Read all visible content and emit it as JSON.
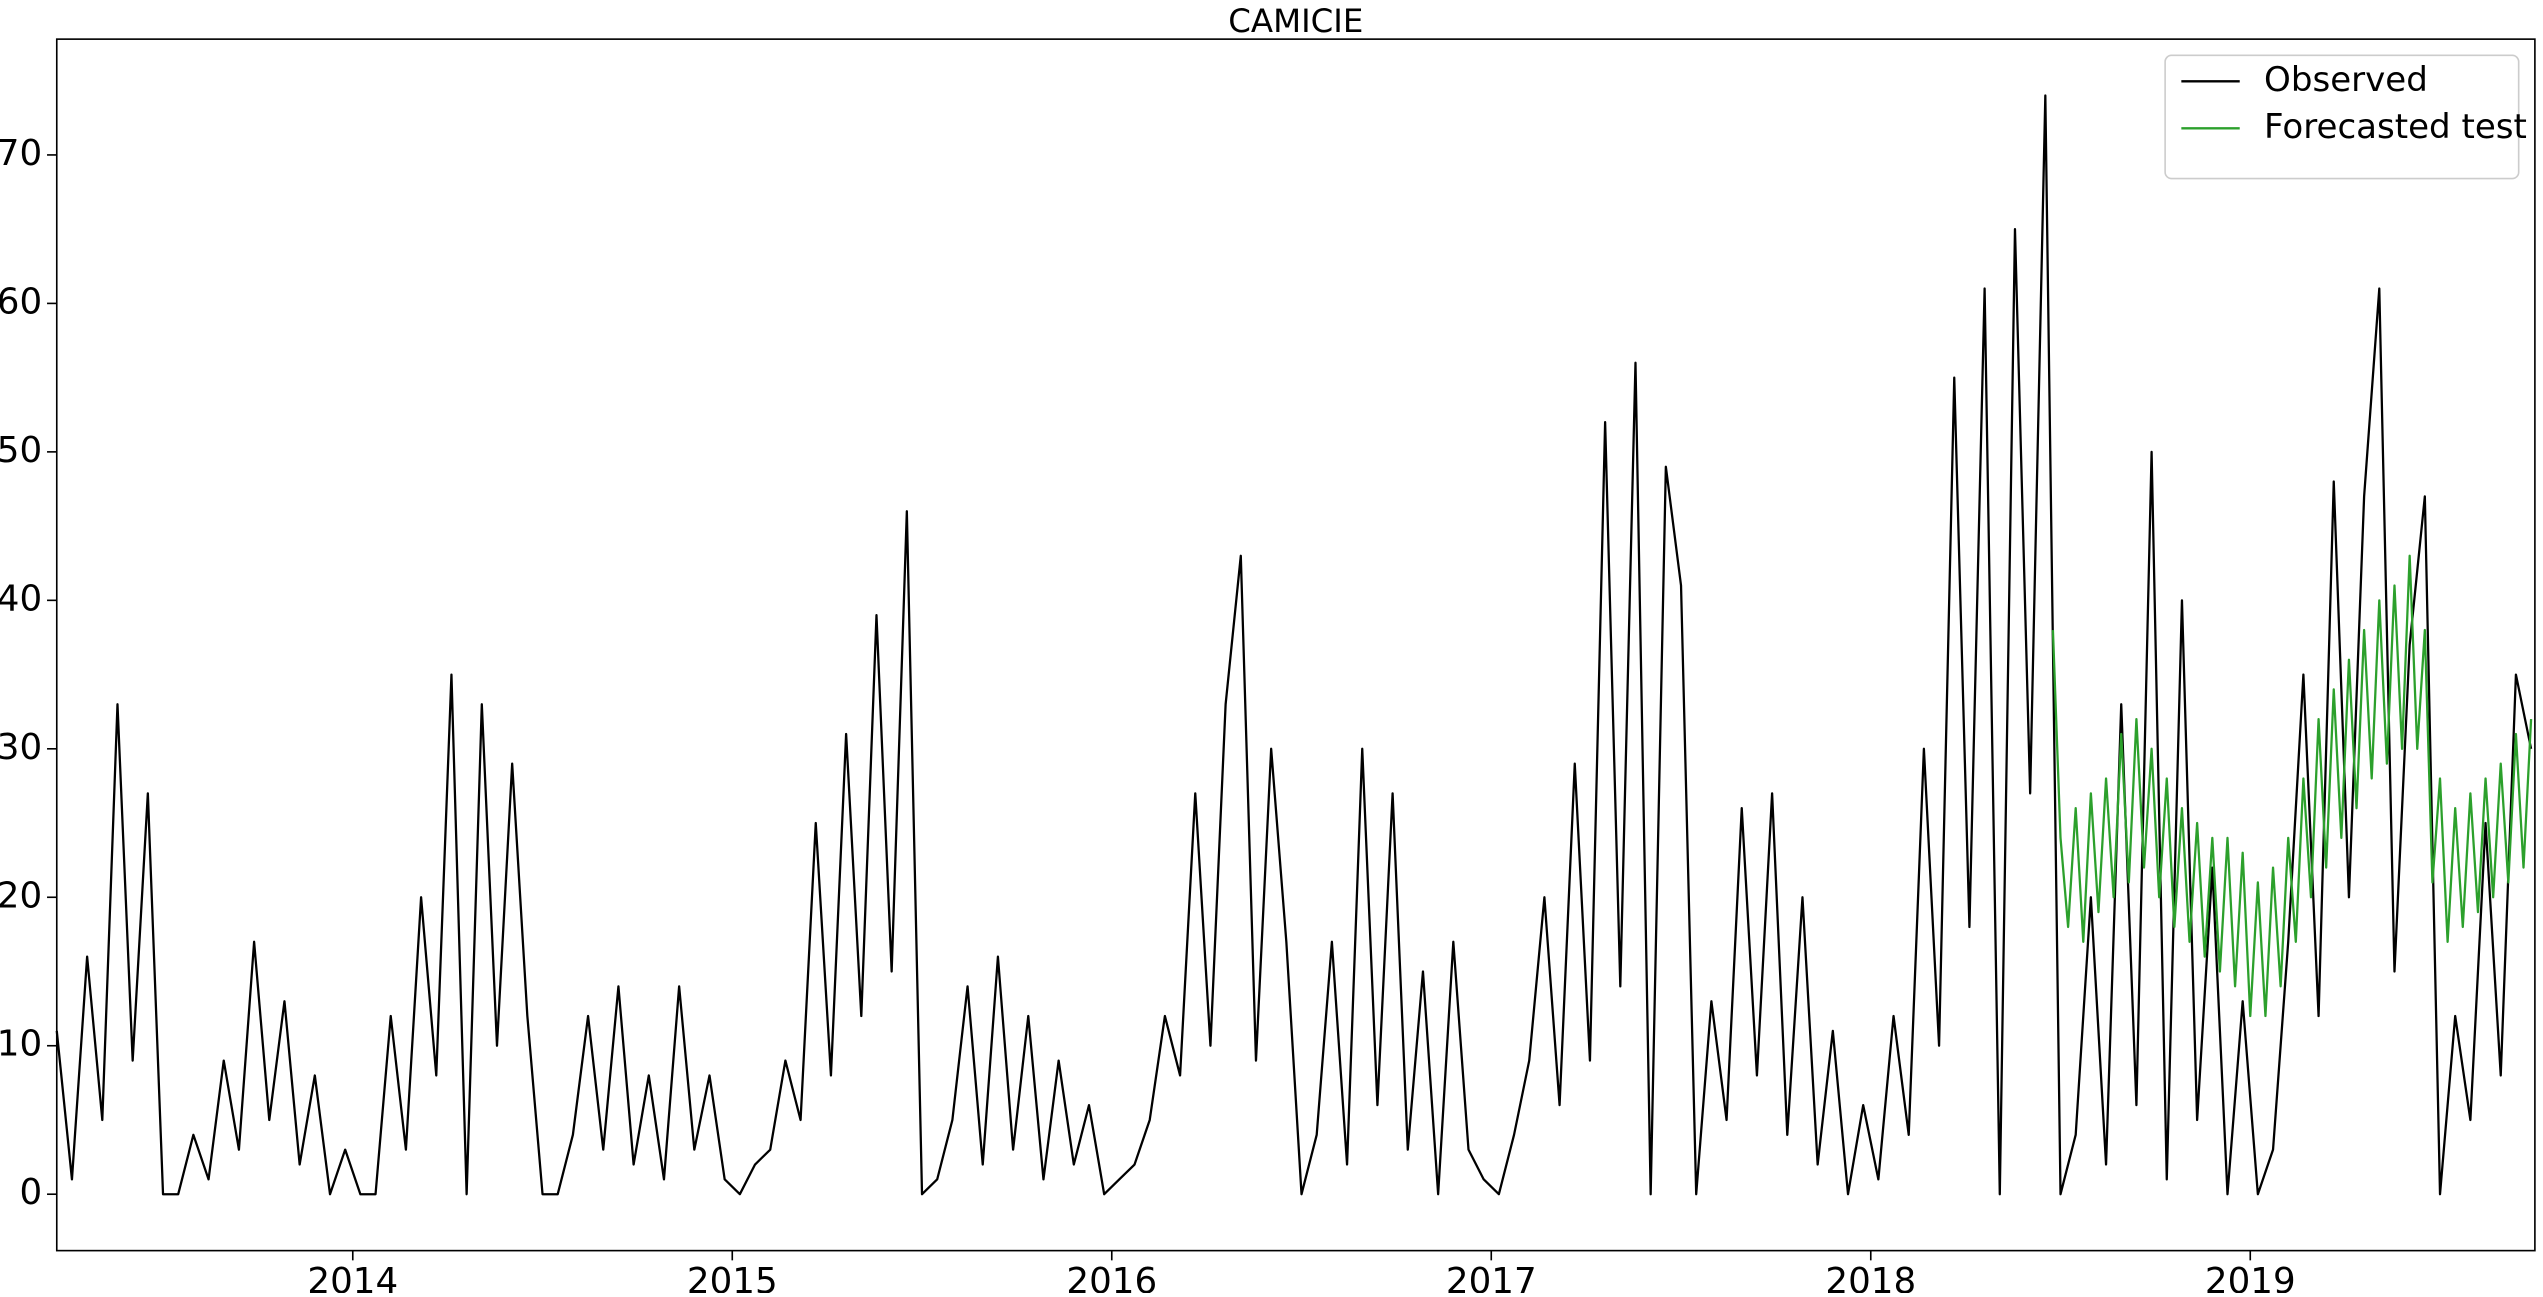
{
  "chart_data": {
    "type": "line",
    "title": "CAMICIE",
    "xlim": [
      2013.22,
      2019.75
    ],
    "xticks": [
      2014,
      2015,
      2016,
      2017,
      2018,
      2019
    ],
    "ylim": [
      -3.8,
      77.8
    ],
    "yticks": [
      0,
      10,
      20,
      30,
      40,
      50,
      60,
      70
    ],
    "grid": false,
    "legend": "upper-right",
    "series": [
      {
        "name": "Observed",
        "color": "#000000",
        "x": [
          2013.22,
          2013.26,
          2013.3,
          2013.34,
          2013.38,
          2013.42,
          2013.46,
          2013.5,
          2013.54,
          2013.58,
          2013.62,
          2013.66,
          2013.7,
          2013.74,
          2013.78,
          2013.82,
          2013.86,
          2013.9,
          2013.94,
          2013.98,
          2014.02,
          2014.06,
          2014.1,
          2014.14,
          2014.18,
          2014.22,
          2014.26,
          2014.3,
          2014.34,
          2014.38,
          2014.42,
          2014.46,
          2014.5,
          2014.54,
          2014.58,
          2014.62,
          2014.66,
          2014.7,
          2014.74,
          2014.78,
          2014.82,
          2014.86,
          2014.9,
          2014.94,
          2014.98,
          2015.02,
          2015.06,
          2015.1,
          2015.14,
          2015.18,
          2015.22,
          2015.26,
          2015.3,
          2015.34,
          2015.38,
          2015.42,
          2015.46,
          2015.5,
          2015.54,
          2015.58,
          2015.62,
          2015.66,
          2015.7,
          2015.74,
          2015.78,
          2015.82,
          2015.86,
          2015.9,
          2015.94,
          2015.98,
          2016.02,
          2016.06,
          2016.1,
          2016.14,
          2016.18,
          2016.22,
          2016.26,
          2016.3,
          2016.34,
          2016.38,
          2016.42,
          2016.46,
          2016.5,
          2016.54,
          2016.58,
          2016.62,
          2016.66,
          2016.7,
          2016.74,
          2016.78,
          2016.82,
          2016.86,
          2016.9,
          2016.94,
          2016.98,
          2017.02,
          2017.06,
          2017.1,
          2017.14,
          2017.18,
          2017.22,
          2017.26,
          2017.3,
          2017.34,
          2017.38,
          2017.42,
          2017.46,
          2017.5,
          2017.54,
          2017.58,
          2017.62,
          2017.66,
          2017.7,
          2017.74,
          2017.78,
          2017.82,
          2017.86,
          2017.9,
          2017.94,
          2017.98,
          2018.02,
          2018.06,
          2018.1,
          2018.14,
          2018.18,
          2018.22,
          2018.26,
          2018.3,
          2018.34,
          2018.38,
          2018.42,
          2018.46,
          2018.5,
          2018.54,
          2018.58,
          2018.62,
          2018.66,
          2018.7,
          2018.74,
          2018.78,
          2018.82,
          2018.86,
          2018.9,
          2018.94,
          2018.98,
          2019.02,
          2019.06,
          2019.1,
          2019.14,
          2019.18,
          2019.22,
          2019.26,
          2019.3,
          2019.34,
          2019.38,
          2019.42,
          2019.46,
          2019.5,
          2019.54,
          2019.58,
          2019.62,
          2019.66,
          2019.7,
          2019.74
        ],
        "values": [
          11,
          1,
          16,
          5,
          33,
          9,
          27,
          0,
          0,
          4,
          1,
          9,
          3,
          17,
          5,
          13,
          2,
          8,
          0,
          3,
          0,
          0,
          12,
          3,
          20,
          8,
          35,
          0,
          33,
          10,
          29,
          12,
          0,
          0,
          4,
          12,
          3,
          14,
          2,
          8,
          1,
          14,
          3,
          8,
          1,
          0,
          2,
          3,
          9,
          5,
          25,
          8,
          31,
          12,
          39,
          15,
          46,
          0,
          1,
          5,
          14,
          2,
          16,
          3,
          12,
          1,
          9,
          2,
          6,
          0,
          1,
          2,
          5,
          12,
          8,
          27,
          10,
          33,
          43,
          9,
          30,
          17,
          0,
          4,
          17,
          2,
          30,
          6,
          27,
          3,
          15,
          0,
          17,
          3,
          1,
          0,
          4,
          9,
          20,
          6,
          29,
          9,
          52,
          14,
          56,
          0,
          49,
          41,
          0,
          13,
          5,
          26,
          8,
          27,
          4,
          20,
          2,
          11,
          0,
          6,
          1,
          12,
          4,
          30,
          10,
          55,
          18,
          61,
          0,
          65,
          27,
          74,
          0,
          4,
          20,
          2,
          33,
          6,
          50,
          1,
          40,
          5,
          22,
          0,
          13,
          0,
          3,
          17,
          35,
          12,
          48,
          20,
          47,
          61,
          15,
          37,
          47,
          0,
          12,
          5,
          25,
          8,
          35,
          30
        ]
      },
      {
        "name": "Forecasted test",
        "color": "#2ca02c",
        "x": [
          2018.48,
          2018.5,
          2018.52,
          2018.54,
          2018.56,
          2018.58,
          2018.6,
          2018.62,
          2018.64,
          2018.66,
          2018.68,
          2018.7,
          2018.72,
          2018.74,
          2018.76,
          2018.78,
          2018.8,
          2018.82,
          2018.84,
          2018.86,
          2018.88,
          2018.9,
          2018.92,
          2018.94,
          2018.96,
          2018.98,
          2019.0,
          2019.02,
          2019.04,
          2019.06,
          2019.08,
          2019.1,
          2019.12,
          2019.14,
          2019.16,
          2019.18,
          2019.2,
          2019.22,
          2019.24,
          2019.26,
          2019.28,
          2019.3,
          2019.32,
          2019.34,
          2019.36,
          2019.38,
          2019.4,
          2019.42,
          2019.44,
          2019.46,
          2019.48,
          2019.5,
          2019.52,
          2019.54,
          2019.56,
          2019.58,
          2019.6,
          2019.62,
          2019.64,
          2019.66,
          2019.68,
          2019.7,
          2019.72,
          2019.74
        ],
        "values": [
          38,
          24,
          18,
          26,
          17,
          27,
          19,
          28,
          20,
          31,
          21,
          32,
          22,
          30,
          20,
          28,
          18,
          26,
          17,
          25,
          16,
          24,
          15,
          24,
          14,
          23,
          12,
          21,
          12,
          22,
          14,
          24,
          17,
          28,
          20,
          32,
          22,
          34,
          24,
          36,
          26,
          38,
          28,
          40,
          29,
          41,
          30,
          43,
          30,
          38,
          21,
          28,
          17,
          26,
          18,
          27,
          19,
          28,
          20,
          29,
          21,
          31,
          22,
          32
        ]
      }
    ]
  }
}
